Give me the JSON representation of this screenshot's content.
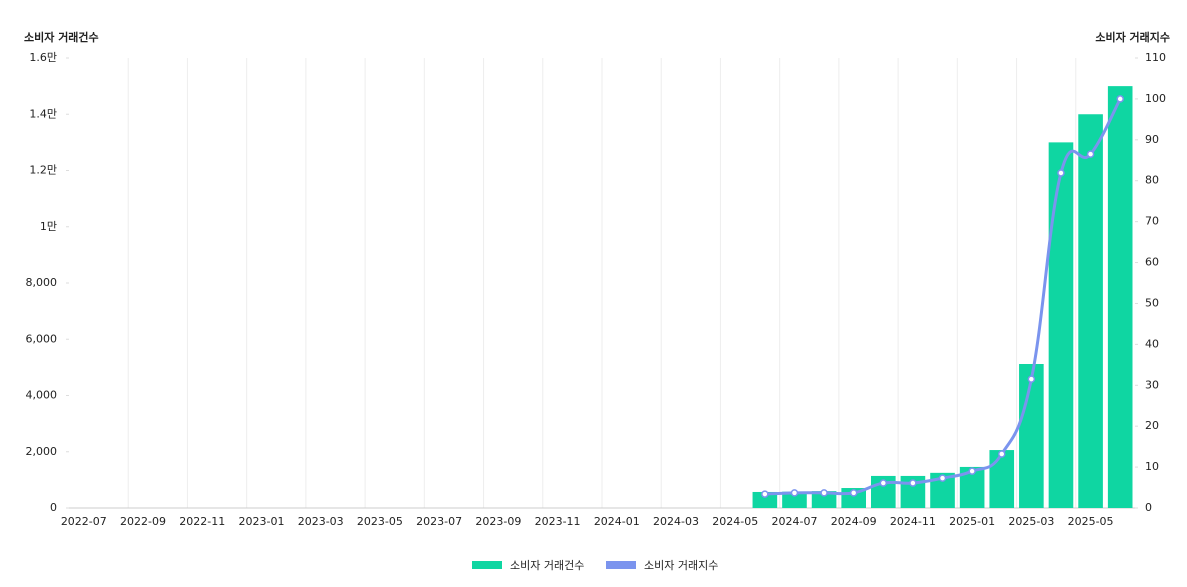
{
  "chart_data": {
    "type": "bar-line",
    "y_title": "소비자 거래건수",
    "y2_title": "소비자 거래지수",
    "categories": [
      "2022-07",
      null,
      "2022-09",
      null,
      "2022-11",
      null,
      "2023-01",
      null,
      "2023-03",
      null,
      "2023-05",
      null,
      "2023-07",
      null,
      "2023-09",
      null,
      "2023-11",
      null,
      "2024-01",
      null,
      "2024-03",
      null,
      "2024-05",
      null,
      "2024-07",
      null,
      "2024-09",
      null,
      "2024-11",
      null,
      "2025-01",
      null,
      "2025-03",
      null,
      "2025-05",
      null
    ],
    "series": [
      {
        "name": "소비자 거래건수",
        "type": "bar",
        "color": "#0fd6a2",
        "axis": "y",
        "values": [
          null,
          null,
          null,
          null,
          null,
          null,
          null,
          null,
          null,
          null,
          null,
          null,
          null,
          null,
          null,
          null,
          null,
          null,
          null,
          null,
          null,
          null,
          null,
          570,
          580,
          600,
          710,
          1140,
          1140,
          1250,
          1460,
          2060,
          5120,
          13000,
          14000,
          15000
        ]
      },
      {
        "name": "소비자 거래지수",
        "type": "line",
        "color": "#7b94ee",
        "axis": "y2",
        "values": [
          null,
          null,
          null,
          null,
          null,
          null,
          null,
          null,
          null,
          null,
          null,
          null,
          null,
          null,
          null,
          null,
          null,
          null,
          null,
          null,
          null,
          null,
          null,
          3.4,
          3.7,
          3.7,
          3.7,
          6.1,
          6.1,
          7.3,
          9.0,
          13.2,
          31.5,
          81.9,
          86.5,
          100
        ]
      }
    ],
    "ylim": [
      0,
      16000
    ],
    "yticks": [
      0,
      {
        "value": 2000,
        "label": "2,000"
      },
      {
        "value": 4000,
        "label": "4,000"
      },
      {
        "value": 6000,
        "label": "6,000"
      },
      {
        "value": 8000,
        "label": "8,000"
      },
      {
        "value": 10000,
        "label": "1만"
      },
      {
        "value": 12000,
        "label": "1.2만"
      },
      {
        "value": 14000,
        "label": "1.4만"
      },
      {
        "value": 16000,
        "label": "1.6만"
      }
    ],
    "y2lim": [
      0,
      110
    ],
    "y2ticks": [
      0,
      10,
      20,
      30,
      40,
      50,
      60,
      70,
      80,
      90,
      100,
      110
    ],
    "grid": true
  }
}
